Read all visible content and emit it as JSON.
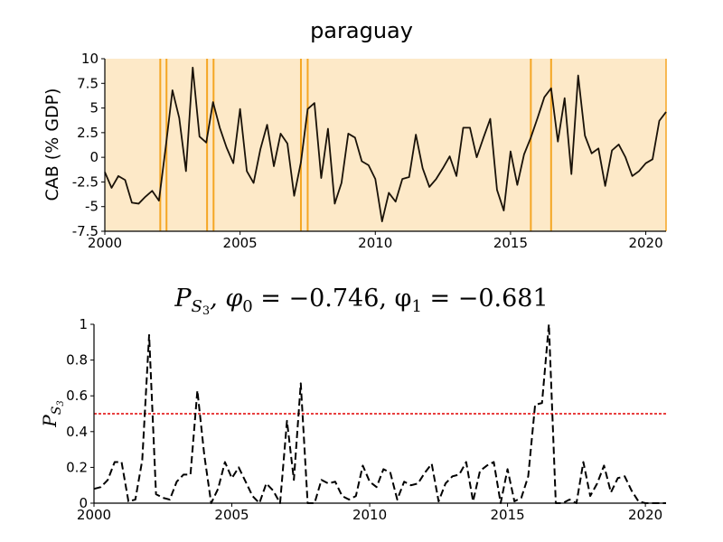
{
  "chart_data": [
    {
      "type": "line",
      "title": "paraguay",
      "xlabel": "",
      "ylabel": "CAB (% GDP)",
      "xlim": [
        2000,
        2020.75
      ],
      "ylim": [
        -7.5,
        10
      ],
      "x_ticks": [
        "2000",
        "2005",
        "2010",
        "2015",
        "2020"
      ],
      "y_ticks": [
        "10",
        "7.5",
        "5",
        "2.5",
        "0",
        "-2.5",
        "-5",
        "-7.5"
      ],
      "background_color": "#fde9c8",
      "line_color": "#1a1208",
      "vline_color": "#f5a623",
      "vertical_lines_x": [
        2002.05,
        2002.28,
        2003.78,
        2004.02,
        2007.25,
        2007.5,
        2015.75,
        2016.5
      ],
      "series": [
        {
          "x": [
            2000.0,
            2000.25,
            2000.5,
            2000.75,
            2001.0,
            2001.25,
            2001.5,
            2001.75,
            2002.0,
            2002.25,
            2002.5,
            2002.75,
            2003.0,
            2003.25,
            2003.5,
            2003.75,
            2004.0,
            2004.25,
            2004.5,
            2004.75,
            2005.0,
            2005.25,
            2005.5,
            2005.75,
            2006.0,
            2006.25,
            2006.5,
            2006.75,
            2007.0,
            2007.25,
            2007.5,
            2007.75,
            2008.0,
            2008.25,
            2008.5,
            2008.75,
            2009.0,
            2009.25,
            2009.5,
            2009.75,
            2010.0,
            2010.25,
            2010.5,
            2010.75,
            2011.0,
            2011.25,
            2011.5,
            2011.75,
            2012.0,
            2012.25,
            2012.5,
            2012.75,
            2013.0,
            2013.25,
            2013.5,
            2013.75,
            2014.0,
            2014.25,
            2014.5,
            2014.75,
            2015.0,
            2015.25,
            2015.5,
            2015.75,
            2016.0,
            2016.25,
            2016.5,
            2016.75,
            2017.0,
            2017.25,
            2017.5,
            2017.75,
            2018.0,
            2018.25,
            2018.5,
            2018.75,
            2019.0,
            2019.25,
            2019.5,
            2019.75,
            2020.0,
            2020.25,
            2020.5,
            2020.75
          ],
          "values": [
            -1.5,
            -3.1,
            -1.9,
            -2.3,
            -4.6,
            -4.7,
            -4.0,
            -3.4,
            -4.4,
            1.0,
            6.8,
            4.0,
            -1.4,
            9.1,
            2.1,
            1.5,
            5.6,
            3.0,
            1.0,
            -0.6,
            4.9,
            -1.4,
            -2.6,
            0.8,
            3.3,
            -0.9,
            2.4,
            1.4,
            -3.9,
            -0.5,
            4.9,
            5.5,
            -2.1,
            2.9,
            -4.7,
            -2.6,
            2.4,
            2.0,
            -0.4,
            -0.8,
            -2.2,
            -6.5,
            -3.6,
            -4.5,
            -2.2,
            -2.0,
            2.3,
            -1.1,
            -3.0,
            -2.2,
            -1.1,
            0.1,
            -1.9,
            3.0,
            3.0,
            0.0,
            2.0,
            3.9,
            -3.3,
            -5.4,
            0.6,
            -2.8,
            0.3,
            2.0,
            4.0,
            6.1,
            7.0,
            1.6,
            6.0,
            -1.7,
            8.3,
            2.2,
            0.4,
            0.9,
            -2.9,
            0.7,
            1.3,
            0.0,
            -1.9,
            -1.4,
            -0.6,
            -0.2,
            3.7,
            4.6
          ]
        }
      ]
    },
    {
      "type": "line",
      "title_text": "P",
      "title_sub": "S",
      "title_subsub": "3",
      "title_rest": ", φ",
      "phi0_sub": "0",
      "phi0_value": " = −0.746, φ",
      "phi1_sub": "1",
      "phi1_value": " = −0.681",
      "ylabel_text": "P",
      "ylabel_sub": "S",
      "ylabel_subsub": "3",
      "xlim": [
        2000,
        2020.75
      ],
      "ylim": [
        0,
        1
      ],
      "x_ticks": [
        "2000",
        "2005",
        "2010",
        "2015",
        "2020"
      ],
      "y_ticks": [
        "1",
        "0.8",
        "0.6",
        "0.4",
        "0.2",
        "0"
      ],
      "threshold": 0.5,
      "threshold_color": "#e00000",
      "line_color": "#000000",
      "series": [
        {
          "x": [
            2000.0,
            2000.25,
            2000.5,
            2000.75,
            2001.0,
            2001.25,
            2001.5,
            2001.75,
            2002.0,
            2002.25,
            2002.5,
            2002.75,
            2003.0,
            2003.25,
            2003.5,
            2003.75,
            2004.0,
            2004.25,
            2004.5,
            2004.75,
            2005.0,
            2005.25,
            2005.5,
            2005.75,
            2006.0,
            2006.25,
            2006.5,
            2006.75,
            2007.0,
            2007.25,
            2007.5,
            2007.75,
            2008.0,
            2008.25,
            2008.5,
            2008.75,
            2009.0,
            2009.25,
            2009.5,
            2009.75,
            2010.0,
            2010.25,
            2010.5,
            2010.75,
            2011.0,
            2011.25,
            2011.5,
            2011.75,
            2012.0,
            2012.25,
            2012.5,
            2012.75,
            2013.0,
            2013.25,
            2013.5,
            2013.75,
            2014.0,
            2014.25,
            2014.5,
            2014.75,
            2015.0,
            2015.25,
            2015.5,
            2015.75,
            2016.0,
            2016.25,
            2016.5,
            2016.75,
            2017.0,
            2017.25,
            2017.5,
            2017.75,
            2018.0,
            2018.25,
            2018.5,
            2018.75,
            2019.0,
            2019.25,
            2019.5,
            2019.75,
            2020.0,
            2020.25,
            2020.5,
            2020.75
          ],
          "values": [
            0.08,
            0.09,
            0.13,
            0.23,
            0.23,
            0.01,
            0.02,
            0.24,
            0.94,
            0.05,
            0.03,
            0.02,
            0.12,
            0.16,
            0.16,
            0.63,
            0.27,
            0.0,
            0.08,
            0.23,
            0.14,
            0.2,
            0.12,
            0.04,
            0.0,
            0.11,
            0.07,
            0.0,
            0.46,
            0.13,
            0.67,
            0.0,
            0.0,
            0.13,
            0.11,
            0.12,
            0.04,
            0.02,
            0.04,
            0.21,
            0.12,
            0.09,
            0.19,
            0.17,
            0.02,
            0.12,
            0.1,
            0.11,
            0.17,
            0.22,
            0.01,
            0.11,
            0.15,
            0.16,
            0.23,
            0.01,
            0.18,
            0.21,
            0.23,
            0.0,
            0.19,
            0.01,
            0.03,
            0.15,
            0.55,
            0.56,
            1.0,
            0.0,
            0.0,
            0.02,
            0.0,
            0.23,
            0.04,
            0.11,
            0.21,
            0.06,
            0.14,
            0.15,
            0.07,
            0.01,
            0.0,
            0.0,
            0.0,
            0.0
          ]
        }
      ]
    }
  ]
}
